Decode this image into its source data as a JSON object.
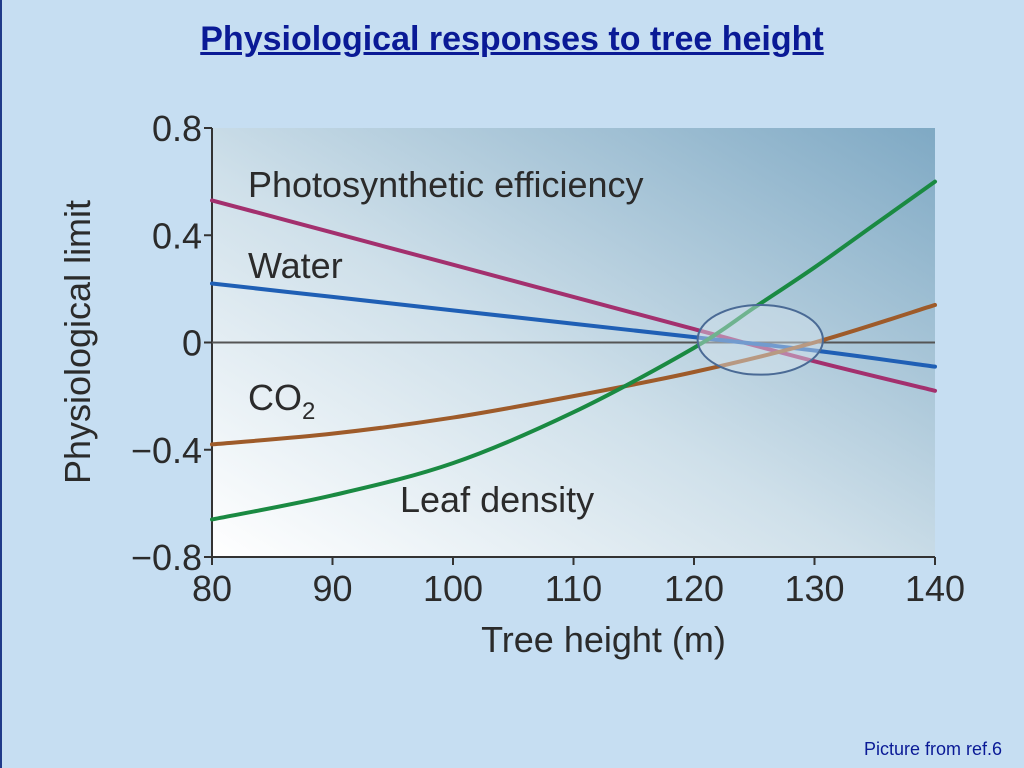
{
  "slide": {
    "title": "Physiological responses to tree height",
    "caption": "Picture from ref.6"
  },
  "colors": {
    "background": "#c6def2",
    "title": "#0a1a96",
    "photosynthetic": "#a3306e",
    "water": "#1f5fb5",
    "co2": "#9e5b2a",
    "leaf_density": "#1a8a42",
    "zero_line": "#555555"
  },
  "chart_data": {
    "type": "line",
    "xlabel": "Tree height (m)",
    "ylabel": "Physiological limit",
    "xlim": [
      80,
      140
    ],
    "ylim": [
      -0.8,
      0.8
    ],
    "xticks": [
      "80",
      "90",
      "100",
      "110",
      "120",
      "130",
      "140"
    ],
    "yticks": [
      "0.8",
      "0.4",
      "0",
      "−0.4",
      "−0.8"
    ],
    "series": [
      {
        "name": "Photosynthetic efficiency",
        "color": "#a3306e",
        "x": [
          80,
          90,
          100,
          110,
          120,
          130,
          140
        ],
        "y": [
          0.53,
          0.41,
          0.29,
          0.17,
          0.05,
          -0.07,
          -0.18
        ]
      },
      {
        "name": "Water",
        "color": "#1f5fb5",
        "x": [
          80,
          90,
          100,
          110,
          120,
          130,
          140
        ],
        "y": [
          0.22,
          0.17,
          0.12,
          0.07,
          0.02,
          -0.03,
          -0.09
        ]
      },
      {
        "name": "CO2",
        "label_main": "CO",
        "label_sub": "2",
        "color": "#9e5b2a",
        "x": [
          80,
          90,
          100,
          110,
          120,
          130,
          140
        ],
        "y": [
          -0.38,
          -0.34,
          -0.28,
          -0.2,
          -0.11,
          0.0,
          0.14
        ]
      },
      {
        "name": "Leaf density",
        "color": "#1a8a42",
        "x": [
          80,
          90,
          100,
          110,
          120,
          125,
          130,
          135,
          140
        ],
        "y": [
          -0.66,
          -0.57,
          -0.45,
          -0.26,
          -0.02,
          0.13,
          0.28,
          0.44,
          0.6
        ]
      }
    ],
    "annotation": {
      "type": "ellipse",
      "center_x": 125.5,
      "center_y": 0.01,
      "rx": 5.2,
      "ry": 0.13
    }
  }
}
